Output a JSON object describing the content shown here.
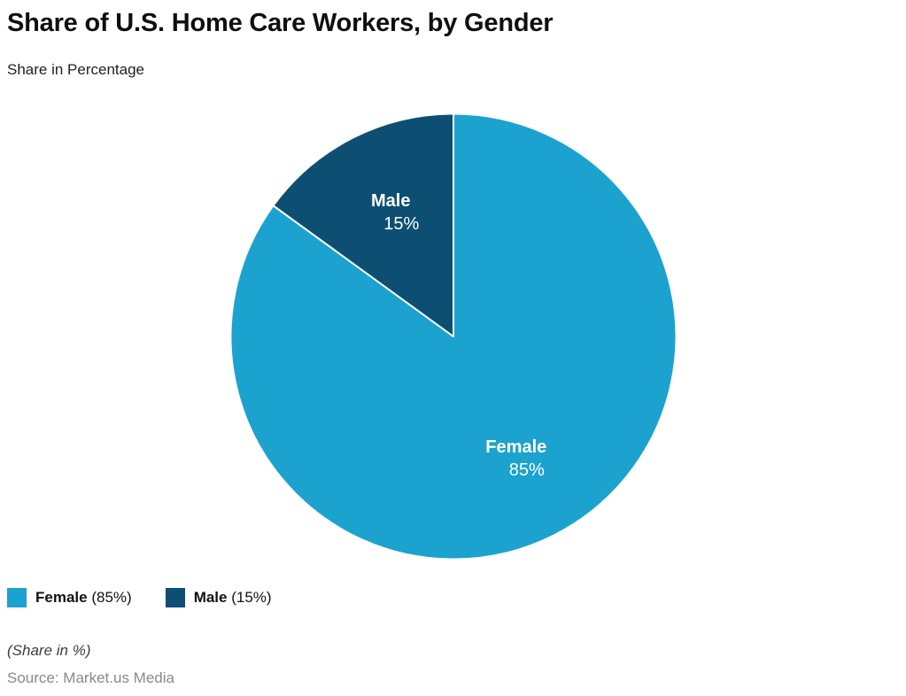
{
  "header": {
    "title": "Share of U.S. Home Care Workers, by Gender",
    "subtitle": "Share in Percentage"
  },
  "chart_data": {
    "type": "pie",
    "title": "Share of U.S. Home Care Workers, by Gender",
    "subtitle": "Share in Percentage",
    "categories": [
      "Female",
      "Male"
    ],
    "values": [
      85,
      15
    ],
    "unit": "%",
    "colors": [
      "#1CA2CE",
      "#0D4F72"
    ],
    "slice_border_color": "#ffffff",
    "label_color": "#ffffff",
    "start_angle_deg": 0,
    "direction": "clockwise",
    "slice_labels": [
      {
        "name": "Female",
        "pct": "85%"
      },
      {
        "name": "Male",
        "pct": "15%"
      }
    ],
    "legend_position": "bottom-left"
  },
  "legend": {
    "items": [
      {
        "name": "Female",
        "value": "(85%)",
        "color": "#1CA2CE"
      },
      {
        "name": "Male",
        "value": "(15%)",
        "color": "#0D4F72"
      }
    ]
  },
  "footer": {
    "note": "(Share in %)",
    "source": "Source: Market.us Media"
  }
}
